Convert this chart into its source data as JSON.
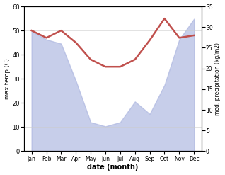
{
  "months": [
    "Jan",
    "Feb",
    "Mar",
    "Apr",
    "May",
    "Jun",
    "Jul",
    "Aug",
    "Sep",
    "Oct",
    "Nov",
    "Dec"
  ],
  "month_x": [
    0,
    1,
    2,
    3,
    4,
    5,
    6,
    7,
    8,
    9,
    10,
    11
  ],
  "temp": [
    50,
    47,
    50,
    45,
    38,
    35,
    35,
    38,
    46,
    55,
    47,
    48
  ],
  "precip": [
    29,
    27,
    26,
    17,
    7,
    6,
    7,
    12,
    9,
    16,
    27,
    32
  ],
  "xlabel": "date (month)",
  "ylabel_left": "max temp (C)",
  "ylabel_right": "med. precipitation (kg/m2)",
  "ylim_left": [
    0,
    60
  ],
  "ylim_right": [
    0,
    35
  ],
  "yticks_left": [
    0,
    10,
    20,
    30,
    40,
    50,
    60
  ],
  "yticks_right": [
    0,
    5,
    10,
    15,
    20,
    25,
    30,
    35
  ],
  "line_color": "#c0504d",
  "fill_color": "#aab4df",
  "fill_alpha": 0.65,
  "bg_color": "#ffffff",
  "line_width": 1.8
}
